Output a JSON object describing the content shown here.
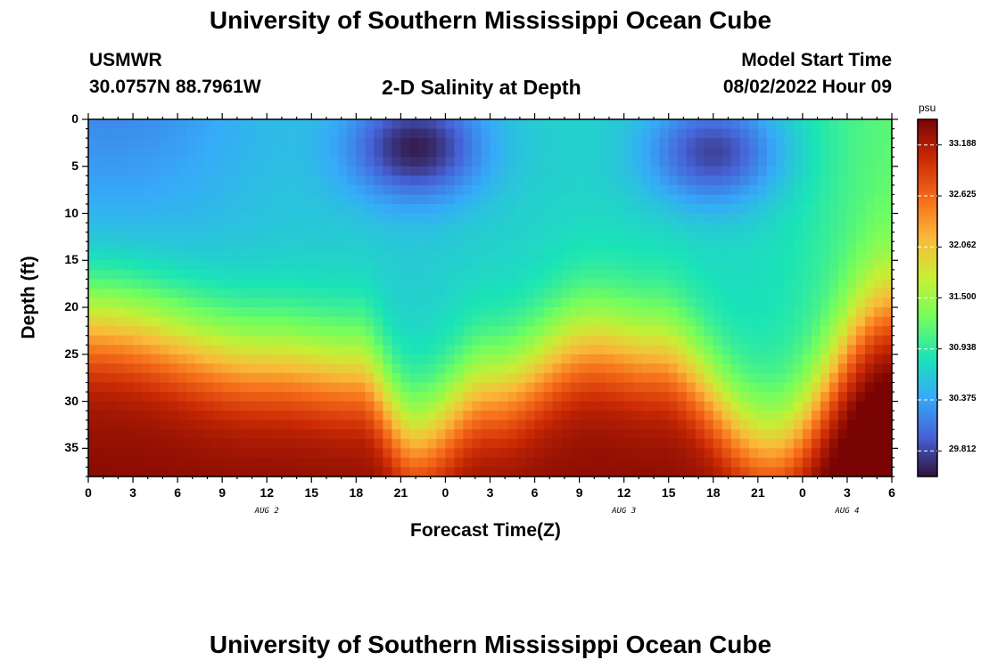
{
  "header": {
    "title": "University of Southern Mississippi Ocean Cube",
    "station_name": "USMWR",
    "station_coords": "30.0757N  88.7961W",
    "plot_title": "2-D Salinity at Depth",
    "model_label": "Model Start Time",
    "model_time": "08/02/2022 Hour 09",
    "bottom_title": "University of Southern Mississippi Ocean Cube"
  },
  "chart_data": {
    "type": "heatmap",
    "title": "2-D Salinity at Depth",
    "xlabel": "Forecast Time(Z)",
    "ylabel": "Depth (ft)",
    "x_tick_labels": [
      "0",
      "3",
      "6",
      "9",
      "12",
      "15",
      "18",
      "21",
      "0",
      "3",
      "6",
      "9",
      "12",
      "15",
      "18",
      "21",
      "0",
      "3",
      "6"
    ],
    "date_labels": [
      {
        "label": "AUG 2",
        "at_hour": 12
      },
      {
        "label": "AUG 3",
        "at_hour": 36
      },
      {
        "label": "AUG 4",
        "at_hour": 51
      }
    ],
    "x_range_hours": [
      0,
      54
    ],
    "y_tick_labels": [
      "0",
      "5",
      "10",
      "15",
      "20",
      "25",
      "30",
      "35"
    ],
    "y_range": [
      0,
      38
    ],
    "y_inverted": true,
    "colorbar": {
      "unit": "psu",
      "ticks": [
        "33.188",
        "32.625",
        "32.062",
        "31.500",
        "30.938",
        "30.375",
        "29.812"
      ],
      "range": [
        29.53,
        33.47
      ],
      "colors": [
        "#30123b",
        "#4662d7",
        "#36aaf9",
        "#1ae4b6",
        "#72fe5e",
        "#c7ef34",
        "#faba39",
        "#f66b19",
        "#cb2a04",
        "#7a0403"
      ]
    },
    "salinity_field": {
      "description_values": "approximate salinity (psu) at forecast hour x and depth (ft)",
      "surface_min_1": {
        "hour": 22,
        "depth": 3,
        "value": 29.6
      },
      "surface_min_2": {
        "hour": 42,
        "depth": 3.5,
        "value": 29.8
      },
      "bottom_max": {
        "depth": 38,
        "value": 33.4
      },
      "halocline_depth_ft": [
        {
          "hour": 0,
          "depth": 21
        },
        {
          "hour": 12,
          "depth": 25
        },
        {
          "hour": 18,
          "depth": 26
        },
        {
          "hour": 22,
          "depth": 33
        },
        {
          "hour": 27,
          "depth": 28
        },
        {
          "hour": 34,
          "depth": 23
        },
        {
          "hour": 38,
          "depth": 24
        },
        {
          "hour": 46,
          "depth": 34
        },
        {
          "hour": 54,
          "depth": 20
        }
      ]
    }
  }
}
